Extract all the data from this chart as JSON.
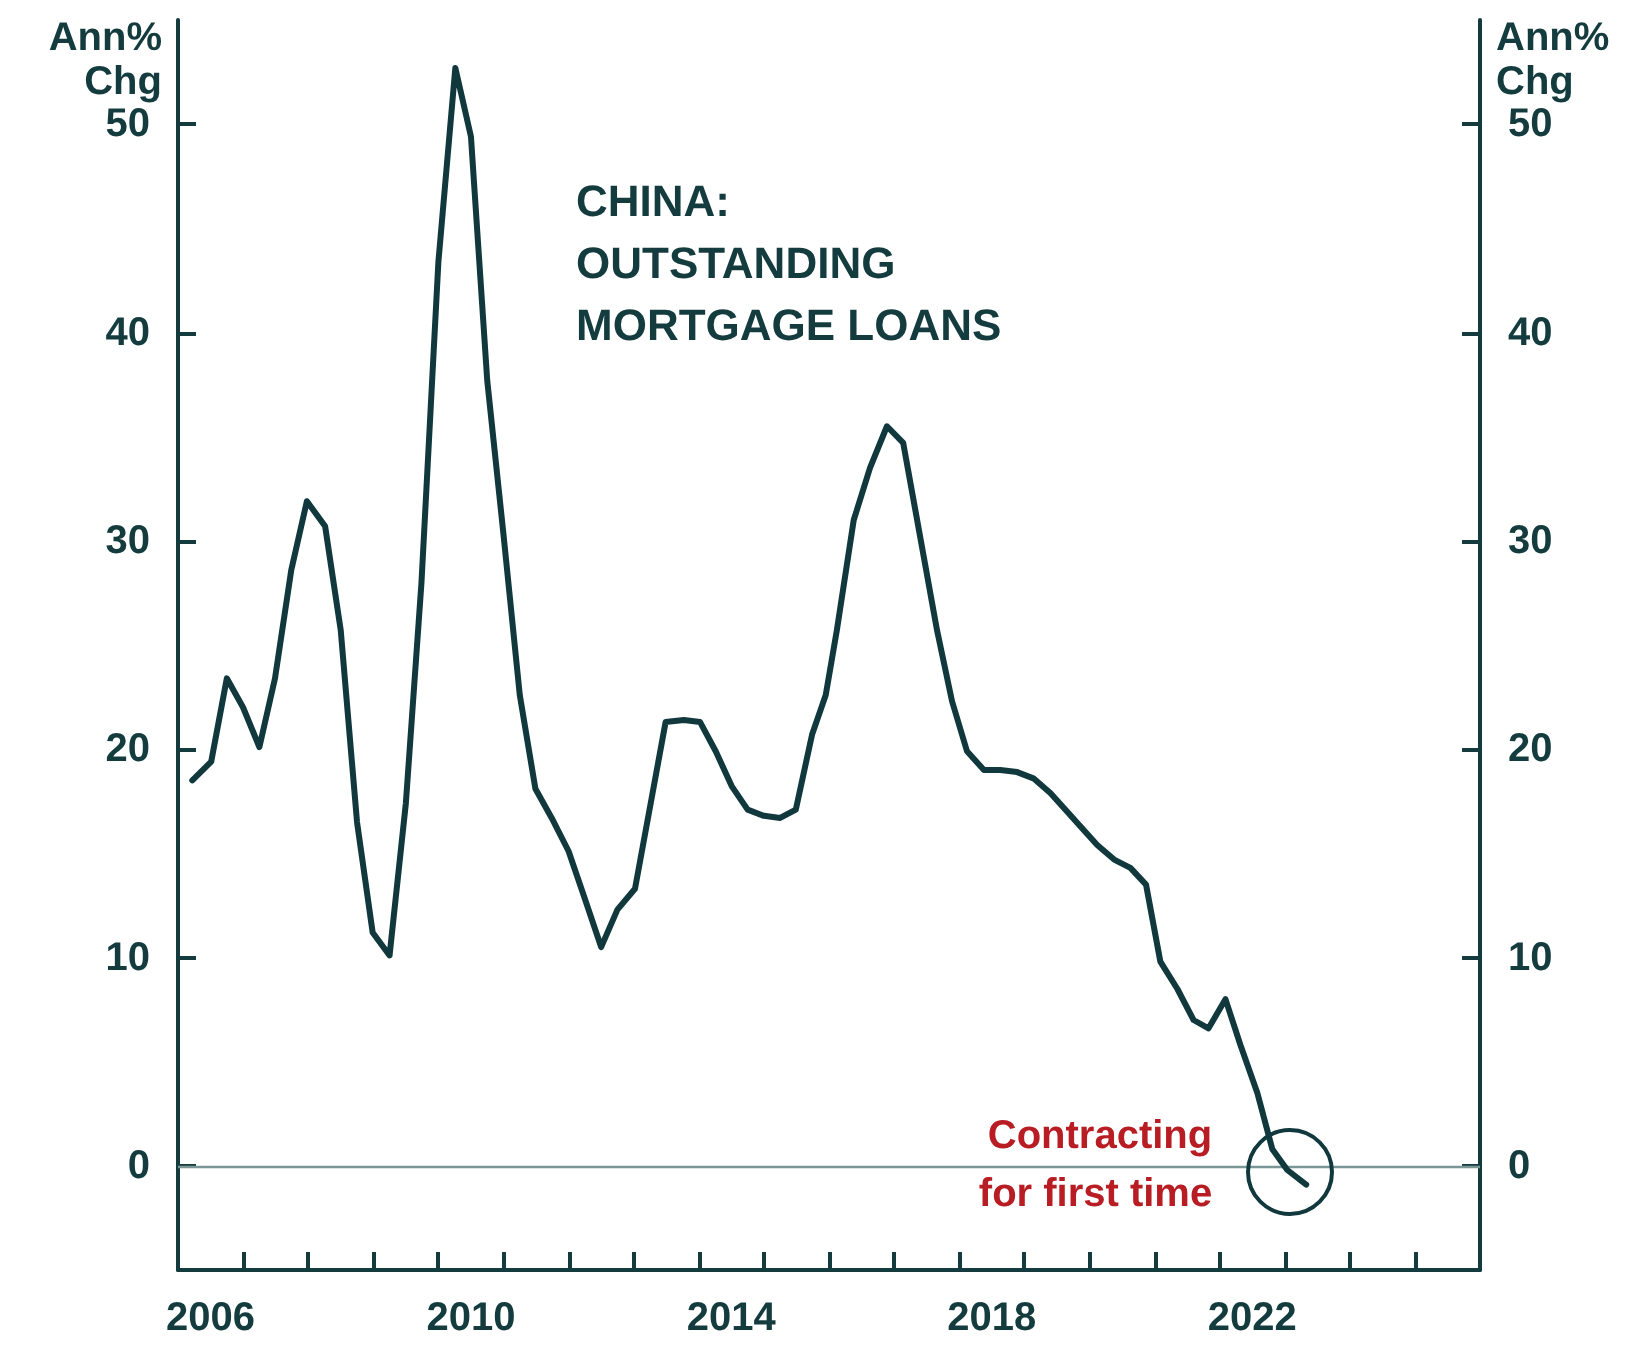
{
  "chart_data": {
    "type": "line",
    "title": "CHINA:\nOUTSTANDING\nMORTGAGE LOANS",
    "ylabel": "Ann%\nChg",
    "y2label": "Ann%\nChg",
    "xlim": [
      2006,
      2026
    ],
    "ylim": [
      -5,
      55
    ],
    "y2lim": [
      -5,
      55
    ],
    "xticks": [
      {
        "value": 2006,
        "label": null
      },
      {
        "value": 2006.5,
        "label": "2006"
      },
      {
        "value": 2007,
        "label": null
      },
      {
        "value": 2008,
        "label": null
      },
      {
        "value": 2009,
        "label": null
      },
      {
        "value": 2010,
        "label": null
      },
      {
        "value": 2010.5,
        "label": "2010"
      },
      {
        "value": 2011,
        "label": null
      },
      {
        "value": 2012,
        "label": null
      },
      {
        "value": 2013,
        "label": null
      },
      {
        "value": 2014,
        "label": null
      },
      {
        "value": 2014.5,
        "label": "2014"
      },
      {
        "value": 2015,
        "label": null
      },
      {
        "value": 2016,
        "label": null
      },
      {
        "value": 2017,
        "label": null
      },
      {
        "value": 2018,
        "label": null
      },
      {
        "value": 2018.5,
        "label": "2018"
      },
      {
        "value": 2019,
        "label": null
      },
      {
        "value": 2020,
        "label": null
      },
      {
        "value": 2021,
        "label": null
      },
      {
        "value": 2022,
        "label": null
      },
      {
        "value": 2022.5,
        "label": "2022"
      },
      {
        "value": 2023,
        "label": null
      },
      {
        "value": 2024,
        "label": null
      },
      {
        "value": 2025,
        "label": null
      },
      {
        "value": 2026,
        "label": null
      }
    ],
    "yticks": [
      0,
      10,
      20,
      30,
      40,
      50
    ],
    "y2ticks": [
      0,
      10,
      20,
      30,
      40,
      50
    ],
    "grid": false,
    "marker": "none",
    "line_style": "solid",
    "ref_lines": [
      {
        "axis": "y",
        "value": 0,
        "color": "#7a9696"
      }
    ],
    "annotations": [
      {
        "text": "Contracting\nfor first time",
        "x": 2023.33,
        "y": -0.9
      }
    ],
    "series": [
      {
        "color": "#11393d",
        "x": [
          2006.22,
          2006.51,
          2006.75,
          2007.0,
          2007.25,
          2007.49,
          2007.74,
          2007.98,
          2008.26,
          2008.5,
          2008.75,
          2008.99,
          2009.25,
          2009.5,
          2009.74,
          2010.0,
          2010.26,
          2010.5,
          2010.75,
          2011.0,
          2011.25,
          2011.49,
          2011.74,
          2012.0,
          2012.23,
          2012.5,
          2012.75,
          2013.02,
          2013.49,
          2013.77,
          2014.02,
          2014.26,
          2014.51,
          2014.75,
          2015.0,
          2015.25,
          2015.49,
          2015.74,
          2015.95,
          2016.12,
          2016.38,
          2016.63,
          2016.89,
          2017.14,
          2017.4,
          2017.66,
          2017.89,
          2018.12,
          2018.38,
          2018.63,
          2018.89,
          2019.14,
          2019.4,
          2019.66,
          2019.86,
          2020.12,
          2020.38,
          2020.63,
          2020.87,
          2021.09,
          2021.35,
          2021.6,
          2021.83,
          2022.09,
          2022.32,
          2022.58,
          2022.81,
          2023.04,
          2023.33
        ],
        "values": [
          18.5,
          19.4,
          23.4,
          22.0,
          20.1,
          23.4,
          28.6,
          31.9,
          30.7,
          25.7,
          16.5,
          11.2,
          10.1,
          17.4,
          28.0,
          43.4,
          52.7,
          49.4,
          37.7,
          30.3,
          22.6,
          18.1,
          16.7,
          15.1,
          13.0,
          10.5,
          12.3,
          13.3,
          21.3,
          21.4,
          21.3,
          19.9,
          18.2,
          17.1,
          16.8,
          16.7,
          17.1,
          20.7,
          22.6,
          25.7,
          31.0,
          33.5,
          35.5,
          34.7,
          30.2,
          25.7,
          22.3,
          19.9,
          19.0,
          19.0,
          18.9,
          18.6,
          17.9,
          17.0,
          16.3,
          15.4,
          14.7,
          14.3,
          13.5,
          9.8,
          8.5,
          7.0,
          6.6,
          8.0,
          5.8,
          3.5,
          0.8,
          -0.2,
          -0.9
        ]
      }
    ]
  }
}
